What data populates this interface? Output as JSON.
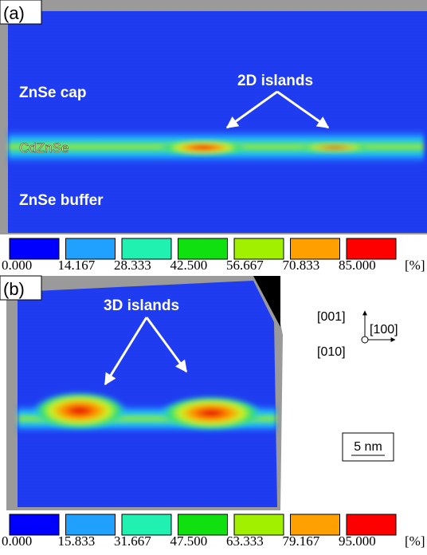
{
  "panels": [
    {
      "label": "(a)",
      "annotations": [
        "ZnSe cap",
        "CdZnSe",
        "ZnSe buffer",
        "2D islands"
      ],
      "colorbar": {
        "labels": [
          "0.000",
          "14.167",
          "28.333",
          "42.500",
          "56.667",
          "70.833",
          "85.000"
        ],
        "unit": "[%]"
      }
    },
    {
      "label": "(b)",
      "annotations": [
        "3D islands"
      ],
      "axes": [
        "[001]",
        "[100]",
        "[010]"
      ],
      "scale_bar": "5 nm",
      "colorbar": {
        "labels": [
          "0.000",
          "15.833",
          "31.667",
          "47.500",
          "63.333",
          "79.167",
          "95.000"
        ],
        "unit": "[%]"
      }
    }
  ]
}
